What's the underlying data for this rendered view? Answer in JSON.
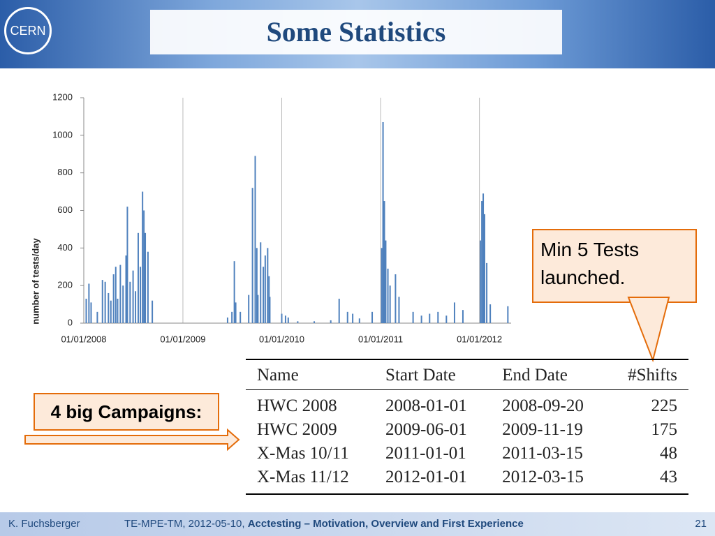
{
  "header": {
    "title": "Some Statistics"
  },
  "chart_data": {
    "type": "bar",
    "y_label": "number of tests/day",
    "color": "#4f81bd",
    "x": [
      "2008-01-10",
      "2008-01-20",
      "2008-01-28",
      "2008-02-20",
      "2008-03-10",
      "2008-03-20",
      "2008-04-01",
      "2008-04-10",
      "2008-04-20",
      "2008-04-28",
      "2008-05-05",
      "2008-05-15",
      "2008-05-25",
      "2008-06-05",
      "2008-06-10",
      "2008-06-20",
      "2008-07-01",
      "2008-07-10",
      "2008-07-20",
      "2008-07-28",
      "2008-08-05",
      "2008-08-10",
      "2008-08-15",
      "2008-08-25",
      "2008-09-10",
      "2009-06-15",
      "2009-07-01",
      "2009-07-10",
      "2009-07-15",
      "2009-08-01",
      "2009-09-01",
      "2009-09-15",
      "2009-09-25",
      "2009-10-01",
      "2009-10-05",
      "2009-10-15",
      "2009-10-25",
      "2009-11-01",
      "2009-11-10",
      "2009-11-15",
      "2009-11-18",
      "2010-01-01",
      "2010-01-15",
      "2010-01-25",
      "2010-03-01",
      "2010-05-01",
      "2010-07-01",
      "2010-08-01",
      "2010-09-01",
      "2010-09-20",
      "2010-10-15",
      "2010-12-01",
      "2011-01-05",
      "2011-01-10",
      "2011-01-15",
      "2011-01-20",
      "2011-01-28",
      "2011-02-05",
      "2011-02-25",
      "2011-03-10",
      "2011-05-01",
      "2011-06-01",
      "2011-07-01",
      "2011-08-01",
      "2011-09-01",
      "2011-10-01",
      "2011-11-01",
      "2012-01-05",
      "2012-01-10",
      "2012-01-15",
      "2012-01-20",
      "2012-01-28",
      "2012-02-10",
      "2012-04-15"
    ],
    "values": [
      130,
      210,
      110,
      60,
      230,
      220,
      160,
      120,
      260,
      300,
      130,
      310,
      200,
      360,
      620,
      220,
      280,
      170,
      480,
      300,
      700,
      600,
      480,
      380,
      120,
      30,
      60,
      330,
      110,
      60,
      150,
      720,
      890,
      400,
      150,
      430,
      300,
      360,
      400,
      250,
      140,
      50,
      40,
      30,
      10,
      10,
      15,
      130,
      60,
      50,
      25,
      60,
      400,
      1070,
      650,
      440,
      290,
      200,
      260,
      140,
      60,
      40,
      50,
      60,
      40,
      110,
      70,
      440,
      650,
      690,
      580,
      320,
      100,
      90
    ],
    "xlim": [
      "2008-01-01",
      "2012-04-27"
    ],
    "xticks": [
      {
        "value": "2008-01-01",
        "label": "01/01/2008"
      },
      {
        "value": "2009-01-01",
        "label": "01/01/2009"
      },
      {
        "value": "2010-01-01",
        "label": "01/01/2010"
      },
      {
        "value": "2011-01-01",
        "label": "01/01/2011"
      },
      {
        "value": "2012-01-01",
        "label": "01/01/2012"
      }
    ],
    "ylim": [
      0,
      1200
    ],
    "yticks": [
      0,
      200,
      400,
      600,
      800,
      1000,
      1200
    ],
    "grid": true
  },
  "callout": "Min 5 Tests launched.",
  "campaigns_label": "4 big Campaigns:",
  "table": {
    "columns": [
      "Name",
      "Start Date",
      "End Date",
      "#Shifts"
    ],
    "rows": [
      [
        "HWC 2008",
        "2008-01-01",
        "2008-09-20",
        225
      ],
      [
        "HWC 2009",
        "2009-06-01",
        "2009-11-19",
        175
      ],
      [
        "X-Mas 10/11",
        "2011-01-01",
        "2011-03-15",
        48
      ],
      [
        "X-Mas 11/12",
        "2012-01-01",
        "2012-03-15",
        43
      ]
    ]
  },
  "footer": {
    "author": "K. Fuchsberger",
    "info": "TE-MPE-TM, 2012-05-10, ",
    "talk": "Acctesting – Motivation, Overview and First Experience",
    "page": "21"
  }
}
